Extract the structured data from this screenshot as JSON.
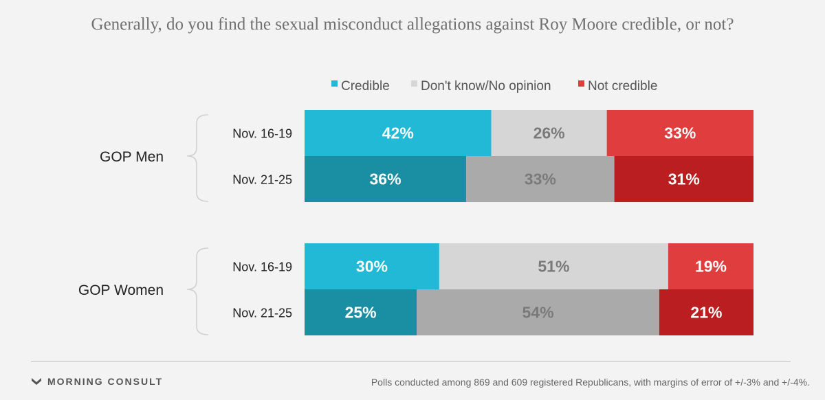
{
  "title": "Generally, do you find the sexual misconduct allegations against Roy Moore credible, or not?",
  "chart_data": {
    "type": "bar",
    "orientation": "horizontal",
    "stacked": true,
    "legend_position": "top",
    "series": [
      {
        "name": "Credible",
        "color": "#21b9d6",
        "dark_color": "#1a8ea3"
      },
      {
        "name": "Don't know/No opinion",
        "color": "#d6d6d6",
        "dark_color": "#aaaaaa"
      },
      {
        "name": "Not credible",
        "color": "#e03e3e",
        "dark_color": "#bb1e20"
      }
    ],
    "groups": [
      {
        "label": "GOP Men",
        "rows": [
          {
            "label": "Nov. 16-19",
            "values": [
              42,
              26,
              33
            ],
            "labels": [
              "42%",
              "26%",
              "33%"
            ]
          },
          {
            "label": "Nov. 21-25",
            "values": [
              36,
              33,
              31
            ],
            "labels": [
              "36%",
              "33%",
              "31%"
            ]
          }
        ]
      },
      {
        "label": "GOP Women",
        "rows": [
          {
            "label": "Nov. 16-19",
            "values": [
              30,
              51,
              19
            ],
            "labels": [
              "30%",
              "51%",
              "19%"
            ]
          },
          {
            "label": "Nov. 21-25",
            "values": [
              25,
              54,
              21
            ],
            "labels": [
              "25%",
              "54%",
              "21%"
            ]
          }
        ]
      }
    ]
  },
  "footer": {
    "brand": "MORNING CONSULT",
    "note": "Polls conducted among 869 and 609 registered Republicans, with margins of error of +/-3% and +/-4%."
  },
  "icons": {
    "brand": "morning-consult-logo-icon"
  }
}
